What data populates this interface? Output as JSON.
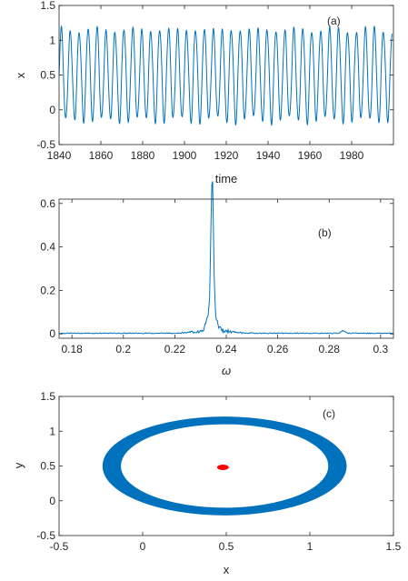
{
  "chart_data": [
    {
      "type": "line",
      "panel_label": "(a)",
      "xlabel": "time",
      "ylabel": "x",
      "xlim": [
        1840,
        2000
      ],
      "ylim": [
        -0.5,
        1.5
      ],
      "xticks": [
        1840,
        1860,
        1880,
        1900,
        1920,
        1940,
        1960,
        1980
      ],
      "xtick_labels": [
        "1840",
        "1860",
        "1880",
        "1900",
        "1920",
        "1940",
        "1960",
        "1980"
      ],
      "yticks": [
        -0.5,
        0,
        0.5,
        1,
        1.5
      ],
      "ytick_labels": [
        "-0.5",
        "0",
        "0.5",
        "1",
        "1.5"
      ],
      "series": [
        {
          "color": "#0072BD",
          "description_values": {
            "period": 4.28,
            "min_approx": -0.15,
            "max_approx": 1.15,
            "mean": 0.5
          }
        }
      ]
    },
    {
      "type": "line",
      "panel_label": "(b)",
      "xlabel": "ω",
      "ylabel": "",
      "xlim": [
        0.175,
        0.305
      ],
      "ylim": [
        -0.02,
        0.62
      ],
      "xticks": [
        0.18,
        0.2,
        0.22,
        0.24,
        0.26,
        0.28,
        0.3
      ],
      "xtick_labels": [
        "0.18",
        "0.2",
        "0.22",
        "0.24",
        "0.26",
        "0.28",
        "0.3"
      ],
      "yticks": [
        0,
        0.2,
        0.4,
        0.6
      ],
      "ytick_labels": [
        "0",
        "0.2",
        "0.4",
        "0.6"
      ],
      "series": [
        {
          "color": "#0072BD",
          "peak": {
            "x": 0.2345,
            "y": 0.615
          },
          "secondary_peak": {
            "x": 0.2855,
            "y": 0.012
          },
          "baseline": 0.003
        }
      ]
    },
    {
      "type": "scatter",
      "panel_label": "(c)",
      "xlabel": "x",
      "ylabel": "y",
      "xlim": [
        -0.5,
        1.5
      ],
      "ylim": [
        -0.5,
        1.5
      ],
      "xticks": [
        -0.5,
        0,
        0.5,
        1,
        1.5
      ],
      "xtick_labels": [
        "-0.5",
        "0",
        "0.5",
        "1",
        "1.5"
      ],
      "yticks": [
        -0.5,
        0,
        0.5,
        1,
        1.5
      ],
      "ytick_labels": [
        "-0.5",
        "0",
        "0.5",
        "1",
        "1.5"
      ],
      "series": [
        {
          "color": "#0072BD",
          "shape": "ring",
          "center": [
            0.49,
            0.5
          ],
          "outer_radius": [
            0.73,
            0.71
          ],
          "inner_radius": [
            0.62,
            0.6
          ]
        },
        {
          "color": "#FF0000",
          "shape": "dot",
          "center": [
            0.48,
            0.48
          ],
          "radius": [
            0.035,
            0.015
          ]
        }
      ]
    }
  ]
}
